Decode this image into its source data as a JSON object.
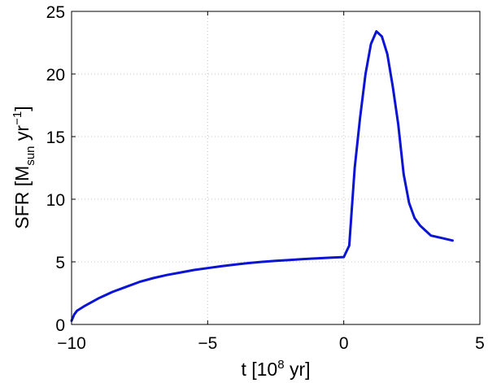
{
  "chart_data": {
    "type": "line",
    "xlabel": "t [10",
    "xlabel_sup": "8",
    "xlabel_tail": " yr]",
    "ylabel": "SFR [M",
    "ylabel_sub": "sun",
    "ylabel_mid": " yr",
    "ylabel_sup": "−1",
    "ylabel_tail": "]",
    "xlim": [
      -10,
      5
    ],
    "ylim": [
      0,
      25
    ],
    "grid": true,
    "x_ticks": [
      -10,
      -5,
      0,
      5
    ],
    "x_tick_labels": [
      "−10",
      "−5",
      "0",
      "5"
    ],
    "y_ticks": [
      0,
      5,
      10,
      15,
      20,
      25
    ],
    "y_tick_labels": [
      "0",
      "5",
      "10",
      "15",
      "20",
      "25"
    ],
    "series": [
      {
        "color": "#0a14d2",
        "x": [
          -10.0,
          -9.9,
          -9.8,
          -9.5,
          -9.0,
          -8.5,
          -8.0,
          -7.5,
          -7.0,
          -6.5,
          -6.0,
          -5.5,
          -5.0,
          -4.5,
          -4.0,
          -3.5,
          -3.0,
          -2.5,
          -2.0,
          -1.5,
          -1.0,
          -0.5,
          0.0,
          0.2,
          0.4,
          0.6,
          0.8,
          1.0,
          1.2,
          1.4,
          1.6,
          1.8,
          2.0,
          2.2,
          2.4,
          2.6,
          2.8,
          3.0,
          3.2,
          3.6,
          4.0
        ],
        "y": [
          0.3,
          0.8,
          1.1,
          1.5,
          2.1,
          2.6,
          3.0,
          3.4,
          3.7,
          3.95,
          4.15,
          4.35,
          4.5,
          4.65,
          4.78,
          4.9,
          5.0,
          5.08,
          5.15,
          5.22,
          5.28,
          5.33,
          5.38,
          6.3,
          12.5,
          16.5,
          20.0,
          22.4,
          23.4,
          23.0,
          21.6,
          19.0,
          16.0,
          12.0,
          9.7,
          8.5,
          7.9,
          7.5,
          7.1,
          6.9,
          6.7
        ]
      }
    ]
  }
}
